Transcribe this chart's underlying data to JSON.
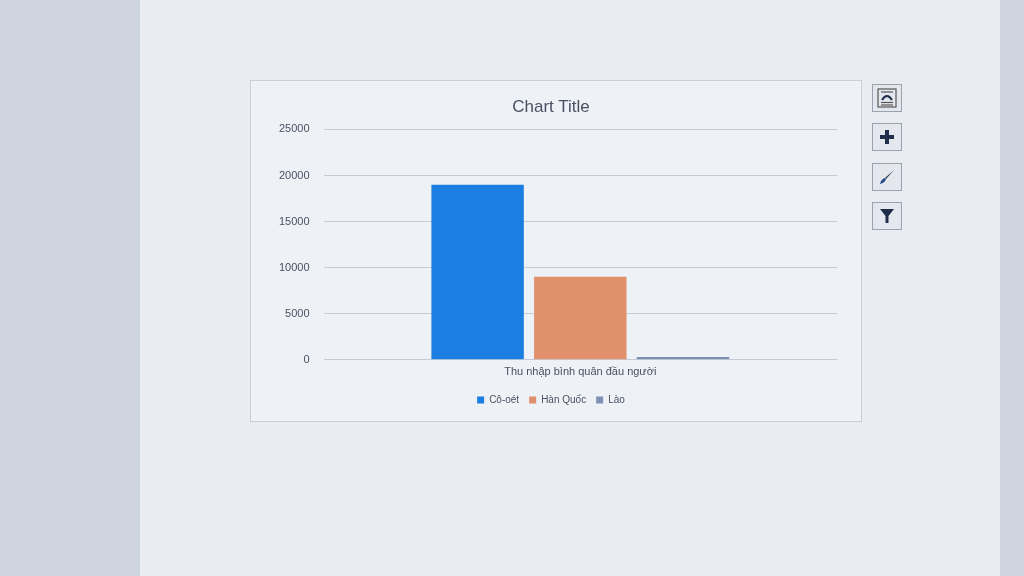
{
  "chart_data": {
    "type": "bar",
    "title": "Chart Title",
    "categories": [
      "Thu nhập bình quân đầu người"
    ],
    "series": [
      {
        "name": "Cô-oét",
        "color": "#1a7fe0",
        "values": [
          19000
        ]
      },
      {
        "name": "Hàn Quốc",
        "color": "#e0906a",
        "values": [
          9000
        ]
      },
      {
        "name": "Lào",
        "color": "#7d8fb3",
        "values": [
          300
        ]
      }
    ],
    "ylim": [
      0,
      25000
    ],
    "yticks": [
      0,
      5000,
      10000,
      15000,
      20000,
      25000
    ],
    "grid": "y",
    "legend": "bottom"
  }
}
